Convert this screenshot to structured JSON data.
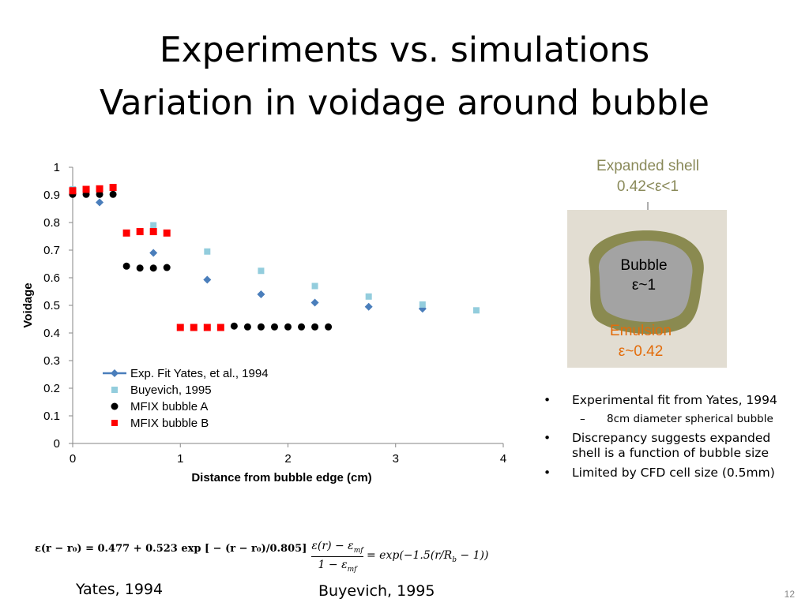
{
  "slide": {
    "title_line1": "Experiments vs. simulations",
    "title_line2": "Variation in voidage around bubble",
    "page_number": "12"
  },
  "diagram": {
    "shell_label_line1": "Expanded shell",
    "shell_label_line2": "0.42<ε<1",
    "bubble_label_line1": "Bubble",
    "bubble_label_line2": "ε~1",
    "emulsion_label_line1": "Emulsion",
    "emulsion_label_line2": "ε~0.42",
    "colors": {
      "shell": "#8a8a50",
      "bubble": "#a3a3a3",
      "emulsion": "#e2ddd2",
      "emulsion_text": "#e36c0a"
    }
  },
  "bullets": {
    "item1": "Experimental fit from Yates, 1994",
    "item1_sub": "8cm diameter spherical bubble",
    "item2": "Discrepancy suggests expanded shell is a function of bubble size",
    "item3": "Limited by CFD cell size (0.5mm)"
  },
  "formulas": {
    "yates": "ε(r − r₀) = 0.477 + 0.523 exp [ − (r − r₀)/0.805]",
    "yates_citation": "Yates,  1994",
    "buyevich_lhs_num": "ε(r) − ε",
    "buyevich_lhs_num_sub": "mf",
    "buyevich_lhs_den": "1 − ε",
    "buyevich_lhs_den_sub": "mf",
    "buyevich_rhs": "= exp(−1.5(r/R",
    "buyevich_rhs_sub": "b",
    "buyevich_rhs_end": " − 1))",
    "buyevich_citation": "Buyevich, 1995"
  },
  "chart_data": {
    "type": "scatter",
    "xlabel": "Distance from bubble edge (cm)",
    "ylabel": "Voidage",
    "xlim": [
      0,
      4
    ],
    "ylim": [
      0,
      1
    ],
    "xticks": [
      "0",
      "1",
      "2",
      "3",
      "4"
    ],
    "yticks": [
      "0",
      "0.1",
      "0.2",
      "0.3",
      "0.4",
      "0.5",
      "0.6",
      "0.7",
      "0.8",
      "0.9",
      "1"
    ],
    "grid": false,
    "legend_placement": "bottom-left",
    "series": [
      {
        "name": "Exp. Fit Yates, et al., 1994",
        "marker": "diamond",
        "color": "#4a7ebb",
        "x": [
          0,
          0.25,
          0.75,
          1.25,
          1.75,
          2.25,
          2.75,
          3.25
        ],
        "y": [
          0.905,
          0.873,
          0.69,
          0.593,
          0.54,
          0.51,
          0.495,
          0.488
        ]
      },
      {
        "name": "Buyevich, 1995",
        "marker": "square",
        "color": "#93cddd",
        "x": [
          0,
          0.25,
          0.75,
          1.25,
          1.75,
          2.25,
          2.75,
          3.25,
          3.75
        ],
        "y": [
          0.92,
          0.91,
          0.79,
          0.695,
          0.625,
          0.57,
          0.532,
          0.503,
          0.482
        ]
      },
      {
        "name": "MFIX bubble A",
        "marker": "circle",
        "color": "#000000",
        "x": [
          0,
          0.125,
          0.25,
          0.375,
          0.5,
          0.625,
          0.75,
          0.875,
          1.5,
          1.625,
          1.75,
          1.875,
          2.0,
          2.125,
          2.25,
          2.375
        ],
        "y": [
          0.902,
          0.902,
          0.902,
          0.902,
          0.642,
          0.635,
          0.635,
          0.637,
          0.425,
          0.422,
          0.422,
          0.422,
          0.422,
          0.422,
          0.422,
          0.422
        ]
      },
      {
        "name": "MFIX bubble B",
        "marker": "square",
        "color": "#ff0000",
        "x": [
          0,
          0.125,
          0.25,
          0.375,
          0.5,
          0.625,
          0.75,
          0.875,
          1.0,
          1.125,
          1.25,
          1.375
        ],
        "y": [
          0.915,
          0.92,
          0.922,
          0.927,
          0.762,
          0.767,
          0.767,
          0.762,
          0.42,
          0.42,
          0.42,
          0.42
        ]
      }
    ]
  }
}
